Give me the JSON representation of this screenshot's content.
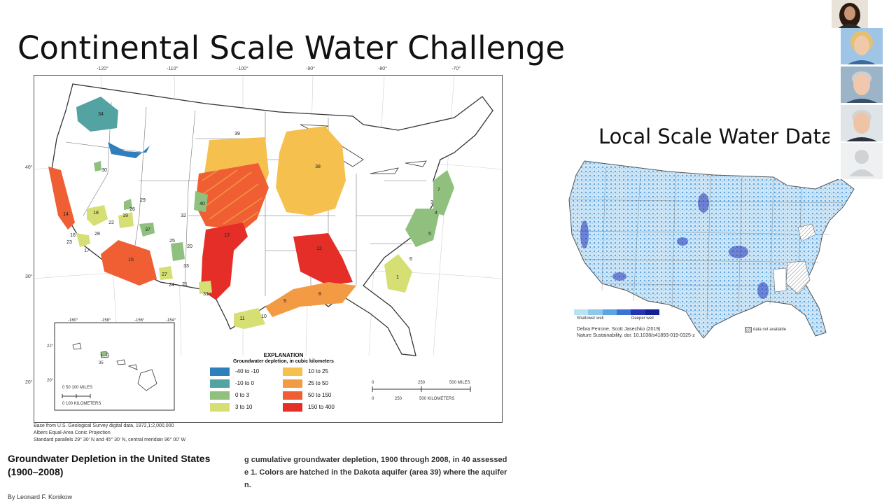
{
  "slide": {
    "title": "Continental Scale Water Challenge",
    "local_title": "Local Scale Water Data"
  },
  "usgs_map": {
    "longitude_labels": [
      "-120°",
      "-110°",
      "-100°",
      "-90°",
      "-80°",
      "-70°"
    ],
    "latitude_labels": [
      "40°",
      "30°",
      "20°"
    ],
    "area_numbers": [
      "34",
      "35",
      "39",
      "30",
      "38",
      "40",
      "14",
      "18",
      "29",
      "26",
      "22",
      "19",
      "16",
      "28",
      "23",
      "17",
      "32",
      "37",
      "25",
      "20",
      "13",
      "15",
      "27",
      "24",
      "33",
      "21",
      "31",
      "12",
      "11",
      "10",
      "9",
      "8",
      "7",
      "6",
      "5",
      "4",
      "3",
      "2",
      "1"
    ],
    "inset_lon_labels": [
      "-160°",
      "-158°",
      "-156°",
      "-154°"
    ],
    "inset_lat_labels": [
      "22°",
      "20°"
    ],
    "inset_scale": {
      "miles": "0    50   100 MILES",
      "km": "0    100 KILOMETERS"
    },
    "scale_bar": {
      "miles": [
        "0",
        "250",
        "500 MILES"
      ],
      "km": [
        "0",
        "250",
        "500 KILOMETERS"
      ]
    },
    "legend": {
      "title": "EXPLANATION",
      "subtitle": "Groundwater depletion, in cubic kilometers",
      "items": [
        {
          "label": "-40 to -10",
          "color": "#2f7fbd"
        },
        {
          "label": "-10 to 0",
          "color": "#52a3a2"
        },
        {
          "label": "0 to 3",
          "color": "#8fc07e"
        },
        {
          "label": "3 to 10",
          "color": "#d6df74"
        },
        {
          "label": "10 to 25",
          "color": "#f6c04e"
        },
        {
          "label": "25 to 50",
          "color": "#f39a45"
        },
        {
          "label": "50 to 150",
          "color": "#ef5f33"
        },
        {
          "label": "150 to 400",
          "color": "#e52e28"
        }
      ]
    },
    "credits": [
      "Base from U.S. Geological Survey digital data, 1972,1:2,000,000",
      "Albers Equal-Area Conic Projection",
      "Standard parallels 29° 30' N and 45° 30' N, central meridian 96° 00' W"
    ]
  },
  "depletion_title": [
    "Groundwater Depletion in the United States",
    "(1900–2008)"
  ],
  "caption_lines": [
    "g cumulative groundwater depletion, 1900 through 2008, in 40 assessed",
    "e 1. Colors are hatched in the Dakota aquifer (area 39) where the aquifer",
    "n."
  ],
  "author": "By Leonard F. Konikow",
  "local_map": {
    "gradient_colors": [
      "#b7e3f2",
      "#8cc8ec",
      "#5aa5e3",
      "#3a72d6",
      "#2433b8",
      "#151f94"
    ],
    "shallow_label": "Shallower well",
    "deeper_label": "Deeper well",
    "citation": [
      "Debra Perrone, Scott Jasechko (2019)",
      "Nature Sustainability, doi: 10.1038/s41893-019-0325-z"
    ],
    "na_label": "data not available"
  },
  "participants": [
    {
      "name": "presenter",
      "skin": "#c89575",
      "hair": "#2a1a12",
      "bg": "#e9e2d8"
    },
    {
      "name": "participant-2",
      "skin": "#f0c9a8",
      "hair": "#e5c070",
      "bg": "#9fc5e6"
    },
    {
      "name": "participant-3",
      "skin": "#f1c7ad",
      "hair": "#cfcfcf",
      "bg": "#9bb4c8"
    },
    {
      "name": "participant-4",
      "skin": "#efc4a6",
      "hair": "#d6d2cc",
      "bg": "#dfe4e8"
    },
    {
      "name": "participant-5",
      "skin": "#cfd3d6",
      "hair": "#cfd3d6",
      "bg": "#eef0f1"
    }
  ]
}
